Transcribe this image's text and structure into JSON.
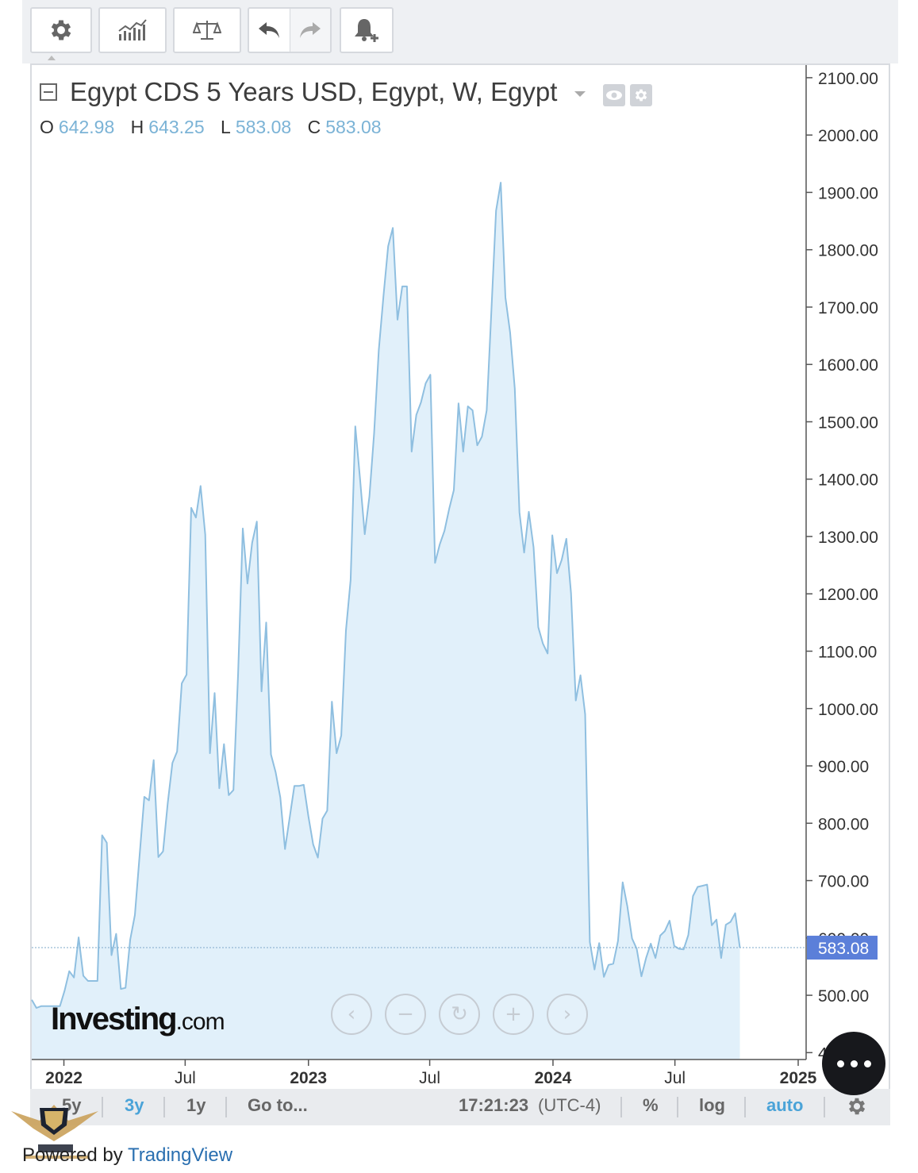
{
  "toolbar": {
    "buttons": [
      "gear-icon",
      "indicators-icon",
      "compare-icon",
      "undo-icon",
      "redo-icon",
      "alert-icon"
    ]
  },
  "legend": {
    "title": "Egypt CDS 5 Years USD, Egypt, W, Egypt",
    "o_label": "O",
    "o_value": "642.98",
    "h_label": "H",
    "h_value": "643.25",
    "l_label": "L",
    "l_value": "583.08",
    "c_label": "C",
    "c_value": "583.08"
  },
  "watermark": {
    "brand": "Investing",
    "suffix": ".com"
  },
  "bottom": {
    "range_5y": "5y",
    "range_3y": "3y",
    "range_1y": "1y",
    "goto": "Go to...",
    "time": "17:21:23",
    "tz": "(UTC-4)",
    "pct": "%",
    "log": "log",
    "auto": "auto"
  },
  "footer": {
    "powered": "Powered by ",
    "tradingview": "TradingView"
  },
  "colors": {
    "line": "#8fbfe0",
    "fill": "#e1f0fa",
    "last_label": "#5b7fd9",
    "accent": "#4aa3d8"
  },
  "chart_data": {
    "type": "area",
    "title": "Egypt CDS 5 Years USD, Egypt, W, Egypt",
    "xlabel": "",
    "ylabel": "",
    "ylim": [
      388,
      2122
    ],
    "x_ticks": [
      "2022",
      "Jul",
      "2023",
      "Jul",
      "2024",
      "Jul",
      "2025"
    ],
    "y_ticks": [
      "2100.00",
      "2000.00",
      "1900.00",
      "1800.00",
      "1700.00",
      "1600.00",
      "1500.00",
      "1400.00",
      "1300.00",
      "1200.00",
      "1100.00",
      "1000.00",
      "900.00",
      "800.00",
      "700.00",
      "600.00",
      "500.00",
      "400.00"
    ],
    "last_value": "583.08",
    "grid": false,
    "series": [
      {
        "values": [
          {
            "x": "2021-11-14",
            "y": 492
          },
          {
            "x": "2021-11-21",
            "y": 478
          },
          {
            "x": "2021-11-28",
            "y": 481
          },
          {
            "x": "2021-12-05",
            "y": 481
          },
          {
            "x": "2021-12-12",
            "y": 481
          },
          {
            "x": "2021-12-19",
            "y": 481
          },
          {
            "x": "2021-12-26",
            "y": 481
          },
          {
            "x": "2022-01-02",
            "y": 508
          },
          {
            "x": "2022-01-09",
            "y": 542
          },
          {
            "x": "2022-01-16",
            "y": 531
          },
          {
            "x": "2022-01-23",
            "y": 601
          },
          {
            "x": "2022-01-30",
            "y": 534
          },
          {
            "x": "2022-02-06",
            "y": 525
          },
          {
            "x": "2022-02-13",
            "y": 525
          },
          {
            "x": "2022-02-20",
            "y": 525
          },
          {
            "x": "2022-02-27",
            "y": 779
          },
          {
            "x": "2022-03-06",
            "y": 766
          },
          {
            "x": "2022-03-13",
            "y": 570
          },
          {
            "x": "2022-03-20",
            "y": 607
          },
          {
            "x": "2022-03-27",
            "y": 511
          },
          {
            "x": "2022-04-03",
            "y": 513
          },
          {
            "x": "2022-04-10",
            "y": 597
          },
          {
            "x": "2022-04-17",
            "y": 640
          },
          {
            "x": "2022-04-24",
            "y": 743
          },
          {
            "x": "2022-05-01",
            "y": 846
          },
          {
            "x": "2022-05-08",
            "y": 840
          },
          {
            "x": "2022-05-15",
            "y": 910
          },
          {
            "x": "2022-05-22",
            "y": 741
          },
          {
            "x": "2022-05-29",
            "y": 751
          },
          {
            "x": "2022-06-05",
            "y": 835
          },
          {
            "x": "2022-06-12",
            "y": 905
          },
          {
            "x": "2022-06-19",
            "y": 925
          },
          {
            "x": "2022-06-26",
            "y": 1044
          },
          {
            "x": "2022-07-03",
            "y": 1059
          },
          {
            "x": "2022-07-10",
            "y": 1350
          },
          {
            "x": "2022-07-17",
            "y": 1333
          },
          {
            "x": "2022-07-24",
            "y": 1388
          },
          {
            "x": "2022-07-31",
            "y": 1303
          },
          {
            "x": "2022-08-07",
            "y": 922
          },
          {
            "x": "2022-08-14",
            "y": 1027
          },
          {
            "x": "2022-08-21",
            "y": 861
          },
          {
            "x": "2022-08-28",
            "y": 938
          },
          {
            "x": "2022-09-04",
            "y": 849
          },
          {
            "x": "2022-09-11",
            "y": 858
          },
          {
            "x": "2022-09-18",
            "y": 1061
          },
          {
            "x": "2022-09-25",
            "y": 1314
          },
          {
            "x": "2022-10-02",
            "y": 1218
          },
          {
            "x": "2022-10-09",
            "y": 1289
          },
          {
            "x": "2022-10-16",
            "y": 1326
          },
          {
            "x": "2022-10-23",
            "y": 1030
          },
          {
            "x": "2022-10-30",
            "y": 1150
          },
          {
            "x": "2022-11-06",
            "y": 920
          },
          {
            "x": "2022-11-13",
            "y": 889
          },
          {
            "x": "2022-11-20",
            "y": 845
          },
          {
            "x": "2022-11-27",
            "y": 755
          },
          {
            "x": "2022-12-04",
            "y": 810
          },
          {
            "x": "2022-12-11",
            "y": 865
          },
          {
            "x": "2022-12-18",
            "y": 865
          },
          {
            "x": "2022-12-25",
            "y": 867
          },
          {
            "x": "2023-01-01",
            "y": 812
          },
          {
            "x": "2023-01-08",
            "y": 763
          },
          {
            "x": "2023-01-15",
            "y": 740
          },
          {
            "x": "2023-01-22",
            "y": 808
          },
          {
            "x": "2023-01-29",
            "y": 822
          },
          {
            "x": "2023-02-05",
            "y": 1012
          },
          {
            "x": "2023-02-12",
            "y": 922
          },
          {
            "x": "2023-02-19",
            "y": 953
          },
          {
            "x": "2023-02-26",
            "y": 1136
          },
          {
            "x": "2023-03-05",
            "y": 1224
          },
          {
            "x": "2023-03-12",
            "y": 1492
          },
          {
            "x": "2023-03-19",
            "y": 1400
          },
          {
            "x": "2023-03-26",
            "y": 1304
          },
          {
            "x": "2023-04-02",
            "y": 1370
          },
          {
            "x": "2023-04-09",
            "y": 1480
          },
          {
            "x": "2023-04-16",
            "y": 1625
          },
          {
            "x": "2023-04-23",
            "y": 1719
          },
          {
            "x": "2023-04-30",
            "y": 1806
          },
          {
            "x": "2023-05-07",
            "y": 1838
          },
          {
            "x": "2023-05-14",
            "y": 1678
          },
          {
            "x": "2023-05-21",
            "y": 1736
          },
          {
            "x": "2023-05-28",
            "y": 1736
          },
          {
            "x": "2023-06-04",
            "y": 1448
          },
          {
            "x": "2023-06-11",
            "y": 1512
          },
          {
            "x": "2023-06-18",
            "y": 1534
          },
          {
            "x": "2023-06-25",
            "y": 1567
          },
          {
            "x": "2023-07-02",
            "y": 1582
          },
          {
            "x": "2023-07-09",
            "y": 1254
          },
          {
            "x": "2023-07-16",
            "y": 1286
          },
          {
            "x": "2023-07-23",
            "y": 1310
          },
          {
            "x": "2023-07-30",
            "y": 1348
          },
          {
            "x": "2023-08-06",
            "y": 1381
          },
          {
            "x": "2023-08-13",
            "y": 1532
          },
          {
            "x": "2023-08-20",
            "y": 1448
          },
          {
            "x": "2023-08-27",
            "y": 1527
          },
          {
            "x": "2023-09-03",
            "y": 1520
          },
          {
            "x": "2023-09-10",
            "y": 1459
          },
          {
            "x": "2023-09-17",
            "y": 1474
          },
          {
            "x": "2023-09-24",
            "y": 1520
          },
          {
            "x": "2023-10-01",
            "y": 1693
          },
          {
            "x": "2023-10-08",
            "y": 1868
          },
          {
            "x": "2023-10-15",
            "y": 1917
          },
          {
            "x": "2023-10-22",
            "y": 1717
          },
          {
            "x": "2023-10-29",
            "y": 1656
          },
          {
            "x": "2023-11-05",
            "y": 1558
          },
          {
            "x": "2023-11-12",
            "y": 1342
          },
          {
            "x": "2023-11-19",
            "y": 1272
          },
          {
            "x": "2023-11-26",
            "y": 1343
          },
          {
            "x": "2023-12-03",
            "y": 1281
          },
          {
            "x": "2023-12-10",
            "y": 1142
          },
          {
            "x": "2023-12-17",
            "y": 1113
          },
          {
            "x": "2023-12-24",
            "y": 1096
          },
          {
            "x": "2023-12-31",
            "y": 1302
          },
          {
            "x": "2024-01-07",
            "y": 1236
          },
          {
            "x": "2024-01-14",
            "y": 1259
          },
          {
            "x": "2024-01-21",
            "y": 1296
          },
          {
            "x": "2024-01-28",
            "y": 1201
          },
          {
            "x": "2024-02-04",
            "y": 1014
          },
          {
            "x": "2024-02-11",
            "y": 1058
          },
          {
            "x": "2024-02-18",
            "y": 990
          },
          {
            "x": "2024-02-25",
            "y": 593
          },
          {
            "x": "2024-03-03",
            "y": 545
          },
          {
            "x": "2024-03-10",
            "y": 591
          },
          {
            "x": "2024-03-17",
            "y": 532
          },
          {
            "x": "2024-03-24",
            "y": 553
          },
          {
            "x": "2024-03-31",
            "y": 555
          },
          {
            "x": "2024-04-07",
            "y": 595
          },
          {
            "x": "2024-04-14",
            "y": 697
          },
          {
            "x": "2024-04-21",
            "y": 655
          },
          {
            "x": "2024-04-28",
            "y": 599
          },
          {
            "x": "2024-05-05",
            "y": 581
          },
          {
            "x": "2024-05-12",
            "y": 533
          },
          {
            "x": "2024-05-19",
            "y": 565
          },
          {
            "x": "2024-05-26",
            "y": 590
          },
          {
            "x": "2024-06-02",
            "y": 565
          },
          {
            "x": "2024-06-09",
            "y": 604
          },
          {
            "x": "2024-06-16",
            "y": 612
          },
          {
            "x": "2024-06-23",
            "y": 630
          },
          {
            "x": "2024-06-30",
            "y": 586
          },
          {
            "x": "2024-07-07",
            "y": 581
          },
          {
            "x": "2024-07-14",
            "y": 580
          },
          {
            "x": "2024-07-21",
            "y": 605
          },
          {
            "x": "2024-07-28",
            "y": 673
          },
          {
            "x": "2024-08-04",
            "y": 689
          },
          {
            "x": "2024-08-11",
            "y": 691
          },
          {
            "x": "2024-08-18",
            "y": 693
          },
          {
            "x": "2024-08-25",
            "y": 622
          },
          {
            "x": "2024-09-01",
            "y": 632
          },
          {
            "x": "2024-09-08",
            "y": 565
          },
          {
            "x": "2024-09-15",
            "y": 623
          },
          {
            "x": "2024-09-22",
            "y": 628
          },
          {
            "x": "2024-09-29",
            "y": 643
          },
          {
            "x": "2024-10-06",
            "y": 583.08
          }
        ]
      }
    ]
  }
}
